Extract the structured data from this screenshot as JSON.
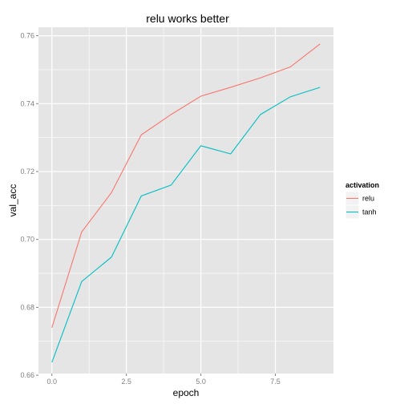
{
  "chart_data": {
    "type": "line",
    "title": "relu works better",
    "xlabel": "epoch",
    "ylabel": "val_acc",
    "xlim": [
      -0.45,
      9.45
    ],
    "ylim": [
      0.6605,
      0.7625
    ],
    "xticks": [
      0.0,
      2.5,
      5.0,
      7.5
    ],
    "xtick_labels": [
      "0.0",
      "2.5",
      "5.0",
      "7.5"
    ],
    "yticks": [
      0.66,
      0.68,
      0.7,
      0.72,
      0.74,
      0.76
    ],
    "ytick_labels": [
      "0.66",
      "0.68",
      "0.70",
      "0.72",
      "0.74",
      "0.76"
    ],
    "grid": true,
    "legend": {
      "title": "activation",
      "position": "right"
    },
    "x": [
      0,
      1,
      2,
      3,
      4,
      5,
      6,
      7,
      8,
      9
    ],
    "series": [
      {
        "name": "relu",
        "color": "#F8766D",
        "values": [
          0.674,
          0.7022,
          0.7138,
          0.7308,
          0.7368,
          0.7422,
          0.7448,
          0.7476,
          0.7508,
          0.7576
        ]
      },
      {
        "name": "tanh",
        "color": "#00BFC4",
        "values": [
          0.6638,
          0.6876,
          0.6948,
          0.7128,
          0.716,
          0.7276,
          0.7252,
          0.7368,
          0.742,
          0.7448
        ]
      }
    ],
    "panel_color": "#E5E5E5",
    "grid_color": "#FFFFFF"
  }
}
